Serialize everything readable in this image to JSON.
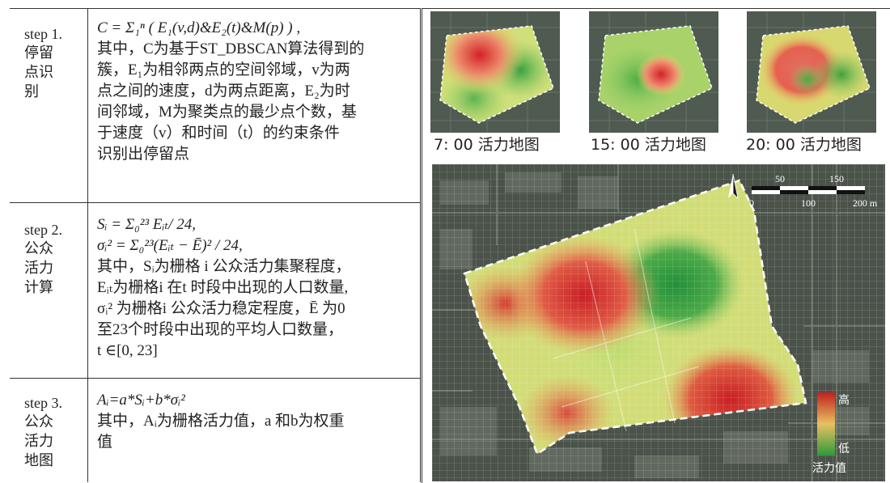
{
  "steps": [
    {
      "label_en": "step 1.",
      "label_zh": [
        "停留",
        "点识",
        "别"
      ],
      "lines": [
        "C = Σ₁ⁿ ( E₁(v,d)&E₂(t)&M(p) ) ,",
        "其中，C为基于ST_DBSCAN算法得到的",
        "簇，E₁为相邻两点的空间邻域，v为两",
        "点之间的速度，d为两点距离，E₂为时",
        "间邻域，M为聚类点的最少点个数，基",
        "于速度（v）和时间（t）的约束条件",
        "识别出停留点"
      ]
    },
    {
      "label_en": "step 2.",
      "label_zh": [
        "公众",
        "活力",
        "计算"
      ],
      "lines": [
        "Sᵢ = Σ₀²³ Eᵢₜ/ 24,",
        "σᵢ² = Σ₀²³(Eᵢₜ − Ē)² / 24,",
        "其中，Sᵢ为栅格 i 公众活力集聚程度，",
        "Eᵢₜ为栅格i 在t 时段中出现的人口数量,",
        "σᵢ² 为栅格i 公众活力稳定程度，Ē 为0",
        "至23个时段中出现的平均人口数量，",
        "t ∈[0, 23]"
      ]
    },
    {
      "label_en": "step 3.",
      "label_zh": [
        "公众",
        "活力",
        "地图"
      ],
      "lines": [
        "Aᵢ=a*Sᵢ+b*σᵢ²",
        "其中，Aᵢ为栅格活力值，a 和b为权重",
        "值"
      ]
    }
  ],
  "thumbnails": [
    {
      "caption": "7: 00 活力地图"
    },
    {
      "caption": "15: 00 活力地图"
    },
    {
      "caption": "20: 00 活力地图"
    }
  ],
  "scale_bar": {
    "top_ticks": [
      "50",
      "150"
    ],
    "bottom_ticks": [
      "0",
      "100",
      "200 m"
    ]
  },
  "legend": {
    "high": "高",
    "low": "低",
    "title": "活力值",
    "colors": {
      "high": "#c0201f",
      "mid": "#e8c060",
      "low": "#2f9a3a"
    }
  }
}
